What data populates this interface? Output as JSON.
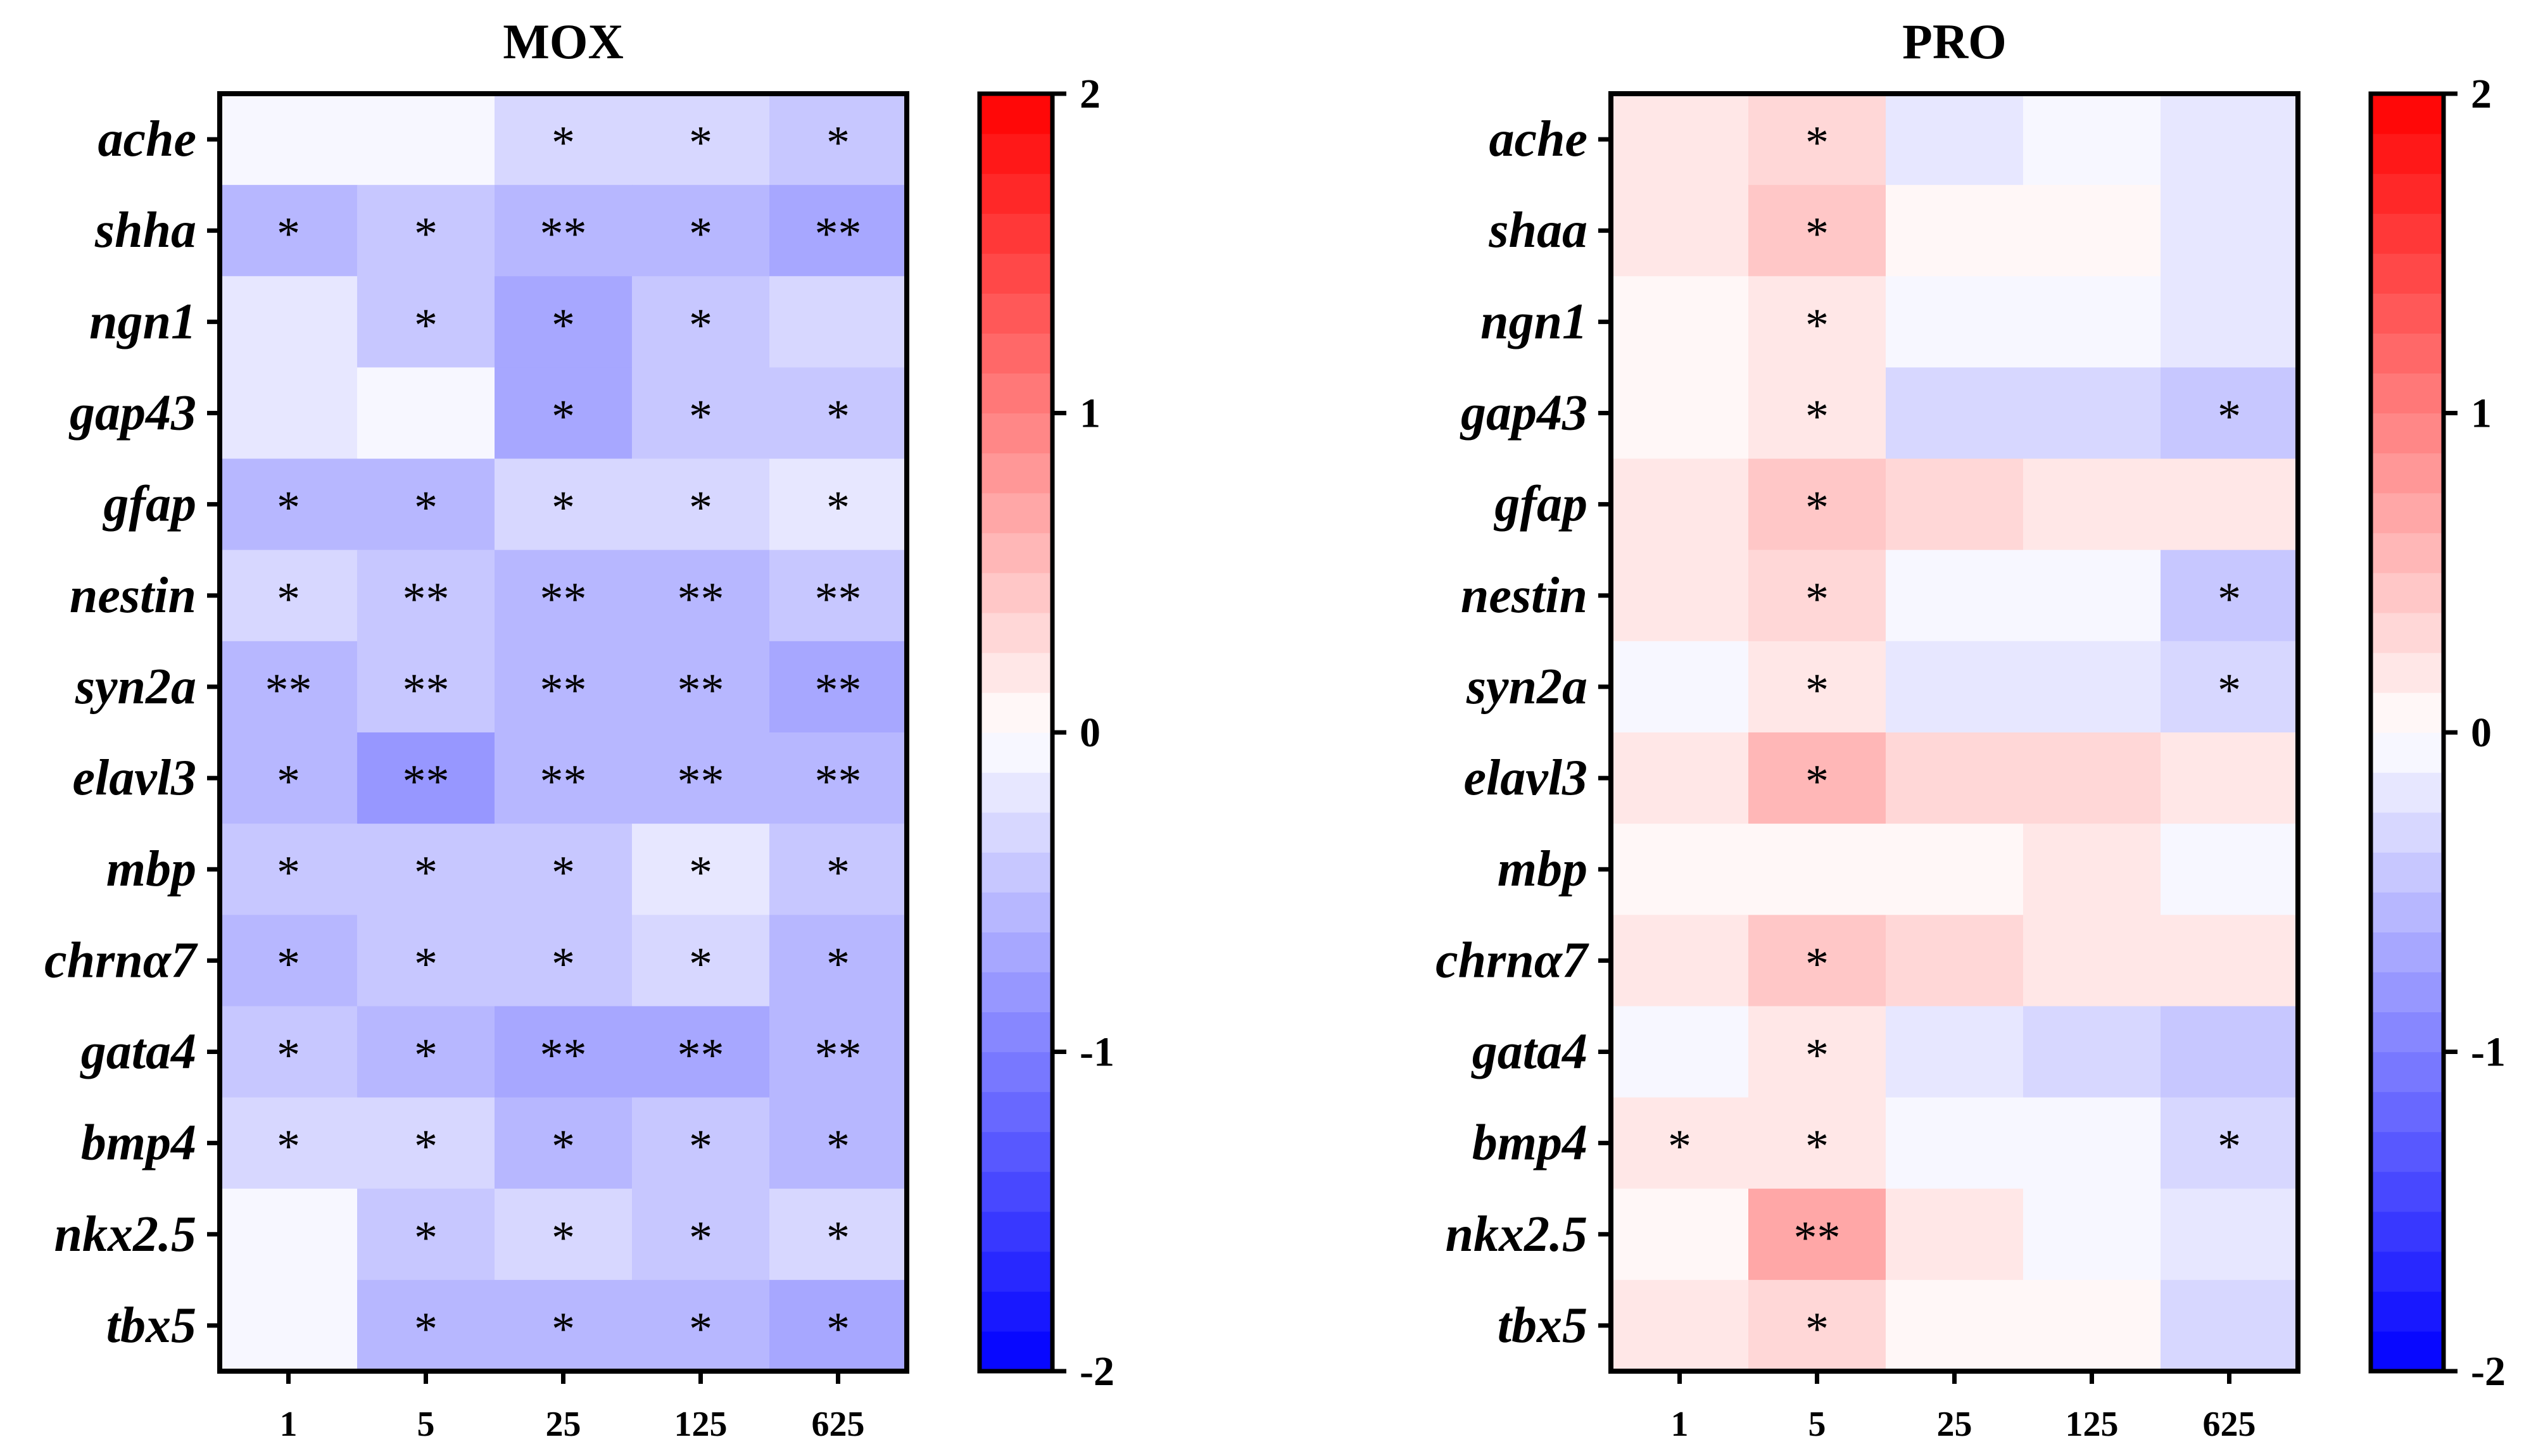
{
  "chart_data": [
    {
      "type": "heatmap",
      "title": "MOX",
      "x_categories": [
        "1",
        "5",
        "25",
        "125",
        "625"
      ],
      "y_categories": [
        "ache",
        "shha",
        "ngn1",
        "gap43",
        "gfap",
        "nestin",
        "syn2a",
        "elavl3",
        "mbp",
        "chrnα7",
        "gata4",
        "bmp4",
        "nkx2.5",
        "tbx5"
      ],
      "values": [
        [
          -0.03,
          -0.1,
          -0.35,
          -0.25,
          -0.45
        ],
        [
          -0.5,
          -0.45,
          -0.6,
          -0.5,
          -0.7
        ],
        [
          -0.2,
          -0.4,
          -0.65,
          -0.4,
          -0.25
        ],
        [
          -0.15,
          -0.1,
          -0.65,
          -0.4,
          -0.4
        ],
        [
          -0.5,
          -0.55,
          -0.35,
          -0.25,
          -0.15
        ],
        [
          -0.25,
          -0.45,
          -0.5,
          -0.5,
          -0.45
        ],
        [
          -0.5,
          -0.4,
          -0.6,
          -0.55,
          -0.7
        ],
        [
          -0.6,
          -0.85,
          -0.6,
          -0.55,
          -0.6
        ],
        [
          -0.4,
          -0.45,
          -0.4,
          -0.2,
          -0.4
        ],
        [
          -0.55,
          -0.45,
          -0.4,
          -0.35,
          -0.5
        ],
        [
          -0.4,
          -0.6,
          -0.65,
          -0.65,
          -0.6
        ],
        [
          -0.25,
          -0.35,
          -0.5,
          -0.45,
          -0.55
        ],
        [
          -0.05,
          -0.45,
          -0.3,
          -0.45,
          -0.35
        ],
        [
          -0.1,
          -0.55,
          -0.55,
          -0.6,
          -0.65
        ]
      ],
      "annotations": [
        [
          "",
          "",
          "*",
          "*",
          "*"
        ],
        [
          "*",
          "*",
          "**",
          "*",
          "**"
        ],
        [
          "",
          "*",
          "*",
          "*",
          ""
        ],
        [
          "",
          "",
          "*",
          "*",
          "*"
        ],
        [
          "*",
          "*",
          "*",
          "*",
          "*"
        ],
        [
          "*",
          "**",
          "**",
          "**",
          "**"
        ],
        [
          "**",
          "**",
          "**",
          "**",
          "**"
        ],
        [
          "*",
          "**",
          "**",
          "**",
          "**"
        ],
        [
          "*",
          "*",
          "*",
          "*",
          "*"
        ],
        [
          "*",
          "*",
          "*",
          "*",
          "*"
        ],
        [
          "*",
          "*",
          "**",
          "**",
          "**"
        ],
        [
          "*",
          "*",
          "*",
          "*",
          "*"
        ],
        [
          "",
          "*",
          "*",
          "*",
          "*"
        ],
        [
          "",
          "*",
          "*",
          "*",
          "*"
        ]
      ],
      "colorbar": {
        "min": -2,
        "max": 2,
        "ticks": [
          "2",
          "1",
          "0",
          "-1",
          "-2"
        ],
        "low_color": "#0000ff",
        "mid_color": "#ffffff",
        "high_color": "#ff0000"
      }
    },
    {
      "type": "heatmap",
      "title": "PRO",
      "x_categories": [
        "1",
        "5",
        "25",
        "125",
        "625"
      ],
      "y_categories": [
        "ache",
        "shaa",
        "ngn1",
        "gap43",
        "gfap",
        "nestin",
        "syn2a",
        "elavl3",
        "mbp",
        "chrnα7",
        "gata4",
        "bmp4",
        "nkx2.5",
        "tbx5"
      ],
      "values": [
        [
          0.15,
          0.3,
          -0.2,
          -0.1,
          -0.2
        ],
        [
          0.2,
          0.4,
          0.1,
          0.1,
          -0.2
        ],
        [
          0.1,
          0.2,
          0.0,
          -0.05,
          -0.15
        ],
        [
          0.07,
          0.25,
          -0.25,
          -0.25,
          -0.45
        ],
        [
          0.25,
          0.4,
          0.3,
          0.2,
          0.15
        ],
        [
          0.2,
          0.3,
          -0.1,
          -0.1,
          -0.45
        ],
        [
          -0.05,
          0.2,
          -0.2,
          -0.15,
          -0.3
        ],
        [
          0.25,
          0.6,
          0.3,
          0.3,
          0.2
        ],
        [
          0.05,
          0.05,
          0.1,
          0.2,
          -0.02
        ],
        [
          0.2,
          0.5,
          0.3,
          0.2,
          0.2
        ],
        [
          -0.1,
          0.2,
          -0.2,
          -0.3,
          -0.45
        ],
        [
          0.2,
          0.2,
          -0.02,
          -0.05,
          -0.35
        ],
        [
          0.05,
          0.65,
          0.15,
          -0.1,
          -0.2
        ],
        [
          0.15,
          0.35,
          0.05,
          0.05,
          -0.25
        ]
      ],
      "annotations": [
        [
          "",
          "*",
          "",
          "",
          ""
        ],
        [
          "",
          "*",
          "",
          "",
          ""
        ],
        [
          "",
          "*",
          "",
          "",
          ""
        ],
        [
          "",
          "*",
          "",
          "",
          "*"
        ],
        [
          "",
          "*",
          "",
          "",
          ""
        ],
        [
          "",
          "*",
          "",
          "",
          "*"
        ],
        [
          "",
          "*",
          "",
          "",
          "*"
        ],
        [
          "",
          "*",
          "",
          "",
          ""
        ],
        [
          "",
          "",
          "",
          "",
          ""
        ],
        [
          "",
          "*",
          "",
          "",
          ""
        ],
        [
          "",
          "*",
          "",
          "",
          ""
        ],
        [
          "*",
          "*",
          "",
          "",
          "*"
        ],
        [
          "",
          "**",
          "",
          "",
          ""
        ],
        [
          "",
          "*",
          "",
          "",
          ""
        ]
      ],
      "colorbar": {
        "min": -2,
        "max": 2,
        "ticks": [
          "2",
          "1",
          "0",
          "-1",
          "-2"
        ],
        "low_color": "#0000ff",
        "mid_color": "#ffffff",
        "high_color": "#ff0000"
      }
    }
  ]
}
